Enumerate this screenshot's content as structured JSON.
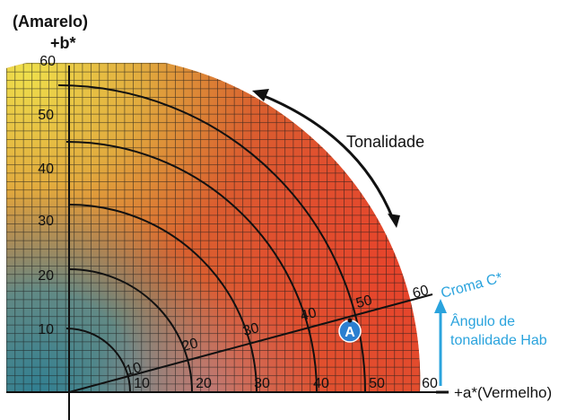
{
  "axes": {
    "y_name": "(Amarelo)",
    "y_label": "+b*",
    "x_label": "+a*(Vermelho)",
    "y_ticks": [
      "10",
      "20",
      "30",
      "40",
      "50",
      "60"
    ],
    "x_ticks": [
      "10",
      "20",
      "30",
      "40",
      "50",
      "60"
    ]
  },
  "arc_labels": [
    "10",
    "20",
    "30",
    "40",
    "50",
    "60"
  ],
  "annotations": {
    "hue": "Tonalidade",
    "chroma": "Croma C*",
    "angle_line1": "Ângulo de",
    "angle_line2": "tonalidade Hab",
    "point": "A"
  },
  "colors": {
    "yellow": "#e6d84a",
    "red": "#e8412a",
    "teal": "#3f8a98",
    "accent_blue": "#2aa3dd",
    "line": "#111111"
  }
}
